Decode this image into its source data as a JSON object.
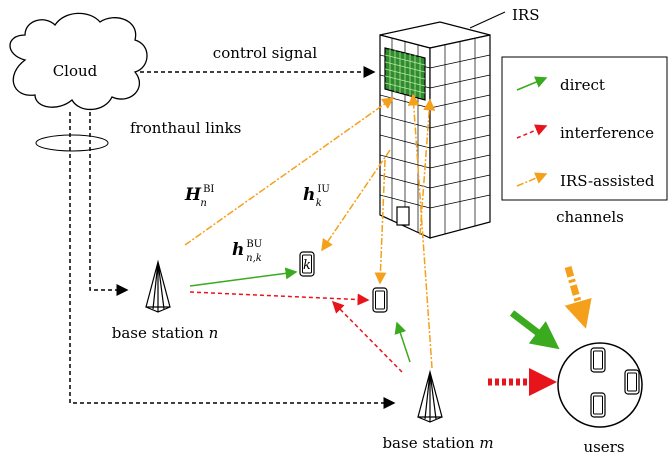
{
  "cloud": "Cloud",
  "control_signal": "control signal",
  "fronthaul": "fronthaul links",
  "irs": "IRS",
  "legend": {
    "items": [
      "direct",
      "interference",
      "IRS-assisted"
    ],
    "title": "channels"
  },
  "channels": [
    {
      "base": "H",
      "sup": "BI",
      "sub": "n"
    },
    {
      "base": "h",
      "sup": "IU",
      "sub": "k"
    },
    {
      "base": "h",
      "sup": "BU",
      "sub": "n,k"
    }
  ],
  "user_k": "k",
  "base_station_n": {
    "text": "base station",
    "index": "n"
  },
  "base_station_m": {
    "text": "base station",
    "index": "m"
  },
  "users": "users"
}
